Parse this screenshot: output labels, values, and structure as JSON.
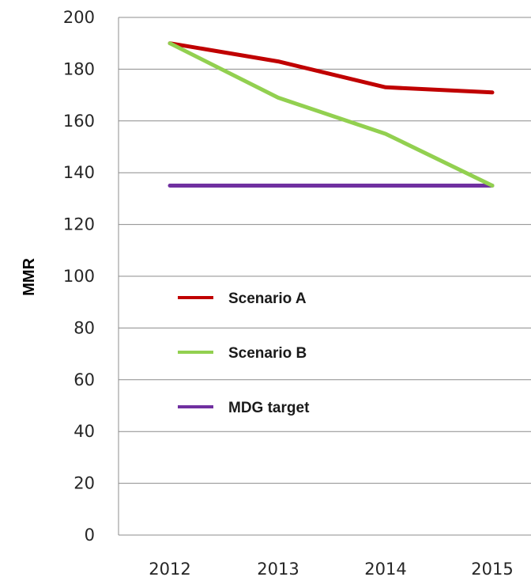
{
  "chart_data": {
    "type": "line",
    "title": "",
    "xlabel": "",
    "ylabel": "MMR",
    "x": [
      "2012",
      "2013",
      "2014",
      "2015"
    ],
    "ylim": [
      0,
      200
    ],
    "yticks": [
      0,
      20,
      40,
      60,
      80,
      100,
      120,
      140,
      160,
      180,
      200
    ],
    "grid": "horizontal",
    "legend_position": "center-left",
    "series": [
      {
        "name": "Scenario A",
        "color": "#c00000",
        "values": [
          190,
          183,
          173,
          171
        ]
      },
      {
        "name": "Scenario B",
        "color": "#92d050",
        "values": [
          190,
          169,
          155,
          135
        ]
      },
      {
        "name": "MDG target",
        "color": "#7030a0",
        "values": [
          135,
          135,
          135,
          135
        ]
      }
    ]
  }
}
